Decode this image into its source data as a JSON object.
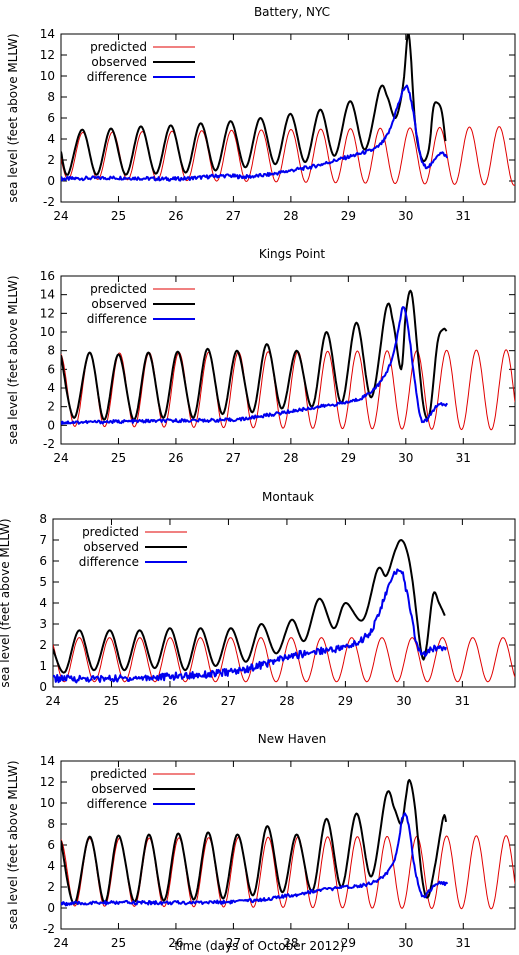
{
  "chart_data": [
    {
      "type": "line",
      "title": "Battery, NYC",
      "ylabel": "sea level (feet above MLLW)",
      "xlabel": "",
      "xlim": [
        24,
        31.9
      ],
      "ylim": [
        -2,
        14
      ],
      "xticks": [
        24,
        25,
        26,
        27,
        28,
        29,
        30,
        31
      ],
      "yticks": [
        -2,
        0,
        2,
        4,
        6,
        8,
        10,
        12,
        14
      ],
      "legend": "top-left",
      "grid": false,
      "series": [
        {
          "name": "predicted",
          "color": "#e00000",
          "model": {
            "period_days": 0.5175,
            "first_peak_day": 24.38,
            "mean": 2.4,
            "amp_start": 2.2,
            "amp_end": 2.8,
            "x_start": 24,
            "x_end": 31.9
          }
        },
        {
          "name": "observed",
          "color": "#000000",
          "x": [
            24.0,
            24.12,
            24.37,
            24.62,
            24.87,
            25.13,
            25.39,
            25.65,
            25.91,
            26.17,
            26.43,
            26.69,
            26.95,
            27.21,
            27.47,
            27.73,
            27.99,
            28.25,
            28.51,
            28.76,
            29.03,
            29.29,
            29.55,
            29.68,
            29.82,
            29.95,
            30.03,
            30.08,
            30.17,
            30.29,
            30.4,
            30.48,
            30.56,
            30.63,
            30.69
          ],
          "y": [
            2.8,
            0.6,
            4.9,
            0.6,
            5.0,
            0.6,
            5.2,
            0.7,
            5.3,
            0.8,
            5.5,
            1.0,
            5.7,
            1.3,
            6.0,
            1.6,
            6.4,
            1.8,
            6.8,
            2.4,
            7.6,
            3.0,
            8.8,
            8.0,
            6.0,
            9.0,
            13.8,
            12.5,
            5.0,
            2.0,
            3.0,
            7.0,
            7.4,
            6.5,
            3.8
          ]
        },
        {
          "name": "difference",
          "color": "#0000ee",
          "x": [
            24.0,
            25.0,
            26.0,
            26.8,
            27.2,
            27.6,
            28.0,
            28.4,
            28.8,
            29.2,
            29.5,
            29.7,
            29.85,
            30.0,
            30.1,
            30.2,
            30.3,
            30.45,
            30.55,
            30.65,
            30.72
          ],
          "y": [
            0.2,
            0.3,
            0.2,
            0.5,
            0.4,
            0.6,
            1.0,
            1.4,
            2.0,
            2.6,
            3.2,
            4.6,
            7.0,
            9.0,
            7.5,
            4.0,
            1.6,
            1.6,
            2.5,
            2.6,
            2.2
          ]
        }
      ]
    },
    {
      "type": "line",
      "title": "Kings Point",
      "ylabel": "sea level (feet above MLLW)",
      "xlabel": "",
      "xlim": [
        24,
        31.9
      ],
      "ylim": [
        -2,
        16
      ],
      "xticks": [
        24,
        25,
        26,
        27,
        28,
        29,
        30,
        31
      ],
      "yticks": [
        -2,
        0,
        2,
        4,
        6,
        8,
        10,
        12,
        14,
        16
      ],
      "legend": "top-left",
      "grid": false,
      "series": [
        {
          "name": "predicted",
          "color": "#e00000",
          "model": {
            "period_days": 0.5175,
            "first_peak_day": 24.5,
            "mean": 3.8,
            "amp_start": 3.9,
            "amp_end": 4.3,
            "x_start": 24,
            "x_end": 31.9
          }
        },
        {
          "name": "observed",
          "color": "#000000",
          "x": [
            24.0,
            24.23,
            24.5,
            24.75,
            25.0,
            25.27,
            25.52,
            25.78,
            26.03,
            26.3,
            26.55,
            26.81,
            27.06,
            27.33,
            27.58,
            27.84,
            28.1,
            28.37,
            28.62,
            28.88,
            29.14,
            29.4,
            29.66,
            29.78,
            29.92,
            30.0,
            30.1,
            30.22,
            30.32,
            30.42,
            30.55,
            30.65,
            30.71
          ],
          "y": [
            7.5,
            0.8,
            7.8,
            0.6,
            7.6,
            0.6,
            7.8,
            0.8,
            7.9,
            0.8,
            8.2,
            1.2,
            8.0,
            1.4,
            8.7,
            1.8,
            8.0,
            2.0,
            10.0,
            2.4,
            11.0,
            3.0,
            12.6,
            11.0,
            6.0,
            12.0,
            14.2,
            7.0,
            1.6,
            1.4,
            8.8,
            10.3,
            10.1
          ]
        },
        {
          "name": "difference",
          "color": "#0000ee",
          "x": [
            24.0,
            25.0,
            26.0,
            27.0,
            27.5,
            28.0,
            28.5,
            29.0,
            29.3,
            29.6,
            29.8,
            29.95,
            30.05,
            30.15,
            30.25,
            30.35,
            30.5,
            30.6,
            30.72
          ],
          "y": [
            0.3,
            0.4,
            0.5,
            0.6,
            1.0,
            1.5,
            2.0,
            2.5,
            3.2,
            5.0,
            8.0,
            12.6,
            10.0,
            5.0,
            1.0,
            0.5,
            1.8,
            2.2,
            2.2
          ]
        }
      ]
    },
    {
      "type": "line",
      "title": "Montauk",
      "ylabel": "sea level (feet above MLLW)",
      "xlabel": "",
      "xlim": [
        24,
        31.9
      ],
      "ylim": [
        0,
        8
      ],
      "xticks": [
        24,
        25,
        26,
        27,
        28,
        29,
        30,
        31
      ],
      "yticks": [
        0,
        1,
        2,
        3,
        4,
        5,
        6,
        7,
        8
      ],
      "legend": "top-left",
      "grid": false,
      "series": [
        {
          "name": "predicted",
          "color": "#e00000",
          "model": {
            "period_days": 0.5175,
            "first_peak_day": 24.45,
            "mean": 1.3,
            "amp_start": 1.05,
            "amp_end": 1.05,
            "x_start": 24,
            "x_end": 31.9
          }
        },
        {
          "name": "observed",
          "color": "#000000",
          "x": [
            24.0,
            24.2,
            24.45,
            24.7,
            24.97,
            25.22,
            25.48,
            25.74,
            26.0,
            26.26,
            26.52,
            26.78,
            27.04,
            27.3,
            27.56,
            27.82,
            28.08,
            28.3,
            28.55,
            28.8,
            29.0,
            29.3,
            29.55,
            29.7,
            29.85,
            29.95,
            30.05,
            30.15,
            30.3,
            30.38,
            30.5,
            30.6,
            30.7
          ],
          "y": [
            1.8,
            0.7,
            2.7,
            0.8,
            2.7,
            0.8,
            2.7,
            0.9,
            2.8,
            0.8,
            2.8,
            1.0,
            2.8,
            1.2,
            3.0,
            1.6,
            3.2,
            2.2,
            4.2,
            2.8,
            4.0,
            3.2,
            5.6,
            5.3,
            6.5,
            7.0,
            6.5,
            5.0,
            1.6,
            1.8,
            4.4,
            4.0,
            3.4
          ]
        },
        {
          "name": "difference",
          "color": "#0000ee",
          "x": [
            24.0,
            25.0,
            26.0,
            27.0,
            27.5,
            28.0,
            28.5,
            29.0,
            29.3,
            29.5,
            29.7,
            29.85,
            29.95,
            30.05,
            30.15,
            30.25,
            30.35,
            30.5,
            30.6,
            30.72
          ],
          "y": [
            0.4,
            0.4,
            0.5,
            0.7,
            1.0,
            1.4,
            1.7,
            1.9,
            2.3,
            3.0,
            4.5,
            5.4,
            5.6,
            4.5,
            3.0,
            1.8,
            1.6,
            1.8,
            1.9,
            1.9
          ]
        }
      ]
    },
    {
      "type": "line",
      "title": "New Haven",
      "ylabel": "sea level (feet above MLLW)",
      "xlabel": "time (days of October 2012)",
      "xlim": [
        24,
        31.9
      ],
      "ylim": [
        -2,
        14
      ],
      "xticks": [
        24,
        25,
        26,
        27,
        28,
        29,
        30,
        31
      ],
      "yticks": [
        -2,
        0,
        2,
        4,
        6,
        8,
        10,
        12,
        14
      ],
      "legend": "top-left",
      "grid": false,
      "series": [
        {
          "name": "predicted",
          "color": "#e00000",
          "model": {
            "period_days": 0.5175,
            "first_peak_day": 24.5,
            "mean": 3.4,
            "amp_start": 3.2,
            "amp_end": 3.5,
            "x_start": 24,
            "x_end": 31.9
          }
        },
        {
          "name": "observed",
          "color": "#000000",
          "x": [
            24.0,
            24.23,
            24.5,
            24.76,
            25.0,
            25.28,
            25.53,
            25.79,
            26.04,
            26.31,
            26.56,
            26.82,
            27.07,
            27.34,
            27.59,
            27.85,
            28.1,
            28.37,
            28.62,
            28.88,
            29.14,
            29.4,
            29.66,
            29.8,
            29.92,
            30.0,
            30.06,
            30.15,
            30.28,
            30.38,
            30.5,
            30.65,
            30.7
          ],
          "y": [
            6.4,
            0.4,
            6.8,
            0.5,
            6.9,
            0.6,
            7.0,
            0.7,
            7.1,
            0.8,
            7.2,
            0.9,
            7.0,
            1.2,
            7.8,
            1.5,
            7.0,
            1.6,
            8.5,
            2.0,
            9.0,
            3.0,
            10.8,
            9.5,
            8.0,
            10.5,
            12.2,
            10.0,
            3.0,
            1.0,
            3.8,
            8.6,
            8.2
          ]
        },
        {
          "name": "difference",
          "color": "#0000ee",
          "x": [
            24.0,
            25.0,
            26.0,
            27.0,
            27.5,
            28.0,
            28.5,
            29.0,
            29.4,
            29.7,
            29.85,
            29.95,
            30.05,
            30.15,
            30.28,
            30.4,
            30.55,
            30.72
          ],
          "y": [
            0.4,
            0.5,
            0.5,
            0.6,
            0.8,
            1.2,
            1.7,
            2.0,
            2.4,
            3.5,
            5.5,
            8.8,
            8.0,
            4.0,
            1.2,
            1.6,
            2.3,
            2.3
          ]
        }
      ]
    }
  ]
}
